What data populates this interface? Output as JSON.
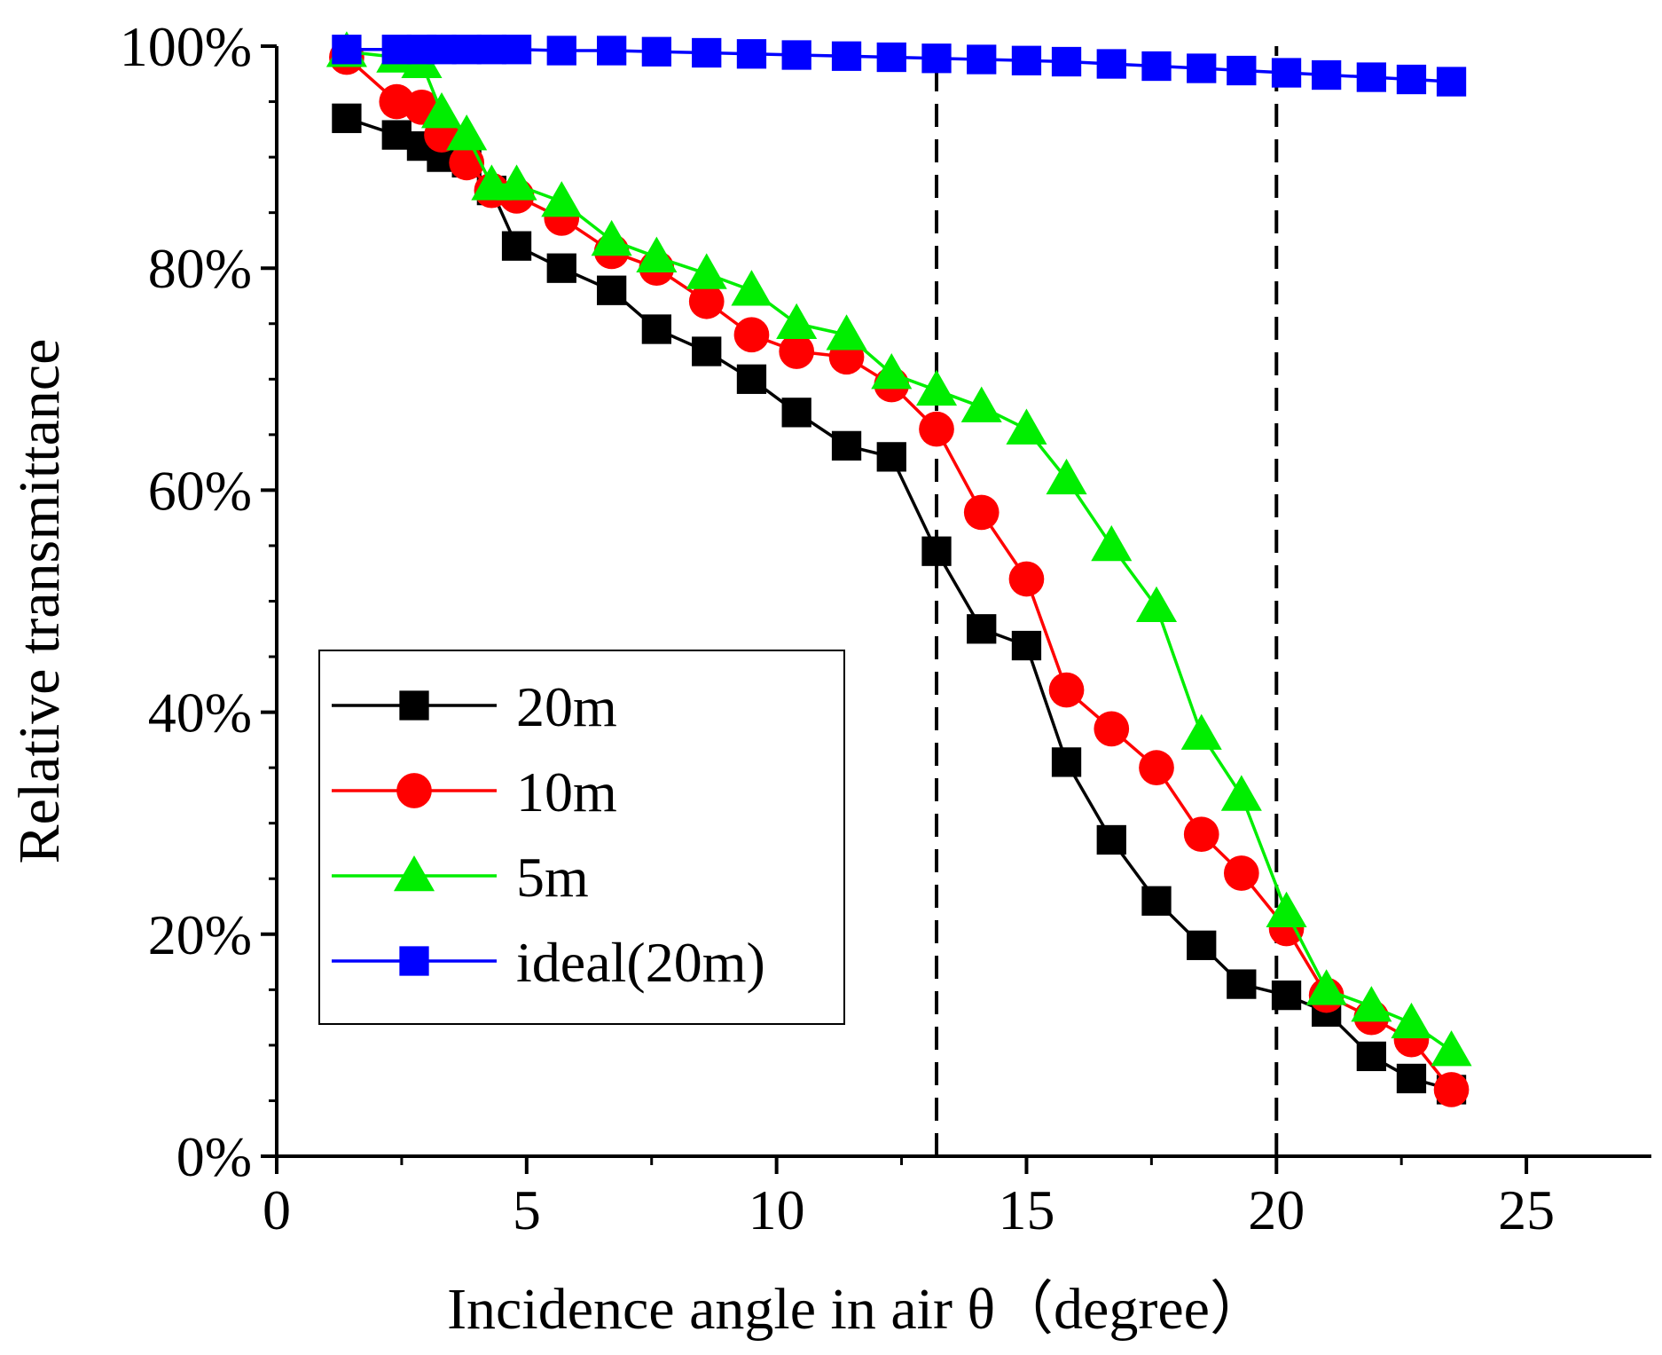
{
  "chart_data": {
    "type": "line",
    "title": "",
    "xlabel": "Incidence angle in air θ（degree）",
    "ylabel": "Relative transmittance",
    "xlim": [
      0,
      27.5
    ],
    "ylim": [
      0,
      100
    ],
    "x_ticks": [
      0,
      5,
      10,
      15,
      20,
      25
    ],
    "x_tick_labels": [
      "0",
      "5",
      "10",
      "15",
      "20",
      "25"
    ],
    "y_ticks": [
      0,
      20,
      40,
      60,
      80,
      100
    ],
    "y_tick_labels": [
      "0%",
      "20%",
      "40%",
      "60%",
      "80%",
      "100%"
    ],
    "grid": false,
    "legend_position": "bottom-left",
    "reference_lines": [
      {
        "axis": "x",
        "value": 13.2,
        "style": "dashed"
      },
      {
        "axis": "x",
        "value": 20.0,
        "style": "dashed"
      }
    ],
    "series": [
      {
        "name": "20m",
        "color": "#000000",
        "marker": "square",
        "x": [
          1.4,
          2.4,
          2.9,
          3.3,
          3.8,
          4.3,
          4.8,
          5.7,
          6.7,
          7.6,
          8.6,
          9.5,
          10.4,
          11.4,
          12.3,
          13.2,
          14.1,
          15.0,
          15.8,
          16.7,
          17.6,
          18.5,
          19.3,
          20.2,
          21.0,
          21.9,
          22.7,
          23.5
        ],
        "y": [
          93.5,
          92,
          91,
          90,
          89.5,
          87,
          82,
          80,
          78,
          74.5,
          72.5,
          70,
          67,
          64,
          63,
          54.5,
          47.5,
          46,
          35.5,
          28.5,
          23,
          19,
          15.5,
          14.5,
          13,
          9,
          7,
          6
        ]
      },
      {
        "name": "10m",
        "color": "#ff0000",
        "marker": "circle",
        "x": [
          1.4,
          2.4,
          2.9,
          3.3,
          3.8,
          4.3,
          4.8,
          5.7,
          6.7,
          7.6,
          8.6,
          9.5,
          10.4,
          11.4,
          12.3,
          13.2,
          14.1,
          15.0,
          15.8,
          16.7,
          17.6,
          18.5,
          19.3,
          20.2,
          21.0,
          21.9,
          22.7,
          23.5
        ],
        "y": [
          99,
          95,
          94.5,
          92,
          89.5,
          87,
          86.5,
          84.5,
          81.5,
          80,
          77,
          74,
          72.5,
          72,
          69.5,
          65.5,
          58,
          52,
          42,
          38.5,
          35,
          29,
          25.5,
          20.5,
          14.5,
          12.5,
          10.5,
          6
        ]
      },
      {
        "name": "5m",
        "color": "#00ee00",
        "marker": "triangle",
        "x": [
          1.4,
          2.4,
          2.9,
          3.3,
          3.8,
          4.3,
          4.8,
          5.7,
          6.7,
          7.6,
          8.6,
          9.5,
          10.4,
          11.4,
          12.3,
          13.2,
          14.1,
          15.0,
          15.8,
          16.7,
          17.6,
          18.5,
          19.3,
          20.2,
          21.0,
          21.9,
          22.7,
          23.5
        ],
        "y": [
          99.5,
          99,
          98.5,
          94,
          92,
          87.5,
          87.5,
          86,
          82.5,
          81,
          79.5,
          78,
          75,
          74,
          70.5,
          69,
          67.5,
          65.5,
          61,
          55,
          49.5,
          38,
          32.5,
          22,
          15,
          13.5,
          12,
          9.5
        ]
      },
      {
        "name": "ideal(20m)",
        "color": "#0000ff",
        "marker": "square",
        "x": [
          1.4,
          2.4,
          2.9,
          3.3,
          3.8,
          4.3,
          4.8,
          5.7,
          6.7,
          7.6,
          8.6,
          9.5,
          10.4,
          11.4,
          12.3,
          13.2,
          14.1,
          15.0,
          15.8,
          16.7,
          17.6,
          18.5,
          19.3,
          20.2,
          21.0,
          21.9,
          22.7,
          23.5
        ],
        "y": [
          99.7,
          99.7,
          99.7,
          99.7,
          99.7,
          99.7,
          99.7,
          99.6,
          99.6,
          99.5,
          99.4,
          99.3,
          99.2,
          99.1,
          99.0,
          98.9,
          98.8,
          98.7,
          98.6,
          98.4,
          98.2,
          98.0,
          97.8,
          97.6,
          97.4,
          97.2,
          97.0,
          96.8
        ]
      }
    ]
  }
}
